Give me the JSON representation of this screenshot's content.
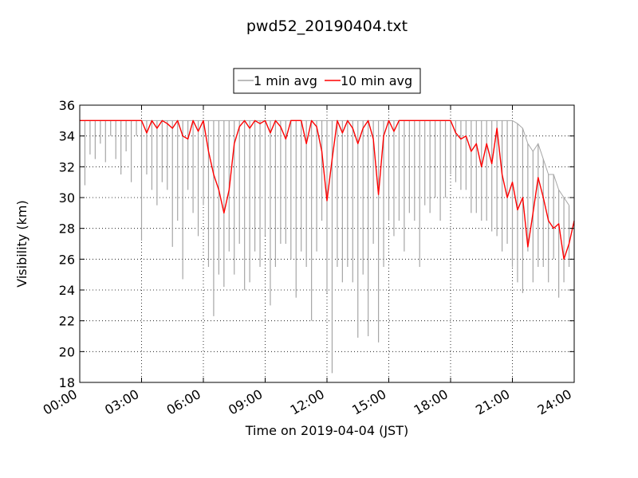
{
  "chart_data": {
    "type": "line",
    "title": "pwd52_20190404.txt",
    "xlabel": "Time on 2019-04-04 (JST)",
    "ylabel": "Visibility (km)",
    "xlim": [
      "00:00",
      "24:00"
    ],
    "ylim": [
      18,
      36
    ],
    "x_ticks": [
      "00:00",
      "03:00",
      "06:00",
      "09:00",
      "12:00",
      "15:00",
      "18:00",
      "21:00",
      "24:00"
    ],
    "y_ticks": [
      18,
      20,
      22,
      24,
      26,
      28,
      30,
      32,
      34,
      36
    ],
    "grid": true,
    "legend_position": "top-center",
    "series": [
      {
        "name": "1 min avg",
        "color": "#a6a6a6",
        "x": [
          "00:15",
          "00:30",
          "00:45",
          "01:00",
          "01:15",
          "01:30",
          "01:45",
          "02:00",
          "02:15",
          "02:30",
          "02:45",
          "03:00",
          "03:15",
          "03:30",
          "03:45",
          "04:00",
          "04:15",
          "04:30",
          "04:45",
          "05:00",
          "05:15",
          "05:30",
          "05:45",
          "06:00",
          "06:15",
          "06:30",
          "06:45",
          "07:00",
          "07:15",
          "07:30",
          "07:45",
          "08:00",
          "08:15",
          "08:30",
          "08:45",
          "09:00",
          "09:15",
          "09:30",
          "09:45",
          "10:00",
          "10:15",
          "10:30",
          "10:45",
          "11:00",
          "11:15",
          "11:30",
          "11:45",
          "12:00",
          "12:15",
          "12:30",
          "12:45",
          "13:00",
          "13:15",
          "13:30",
          "13:45",
          "14:00",
          "14:15",
          "14:30",
          "14:45",
          "15:00",
          "15:15",
          "15:30",
          "15:45",
          "16:00",
          "16:15",
          "16:30",
          "16:45",
          "17:00",
          "17:15",
          "17:30",
          "17:45",
          "18:00",
          "18:15",
          "18:30",
          "18:45",
          "19:00",
          "19:15",
          "19:30",
          "19:45",
          "20:00",
          "20:15",
          "20:30",
          "20:45",
          "21:00",
          "21:15",
          "21:30",
          "21:45",
          "22:00",
          "22:15",
          "22:30",
          "22:45",
          "23:00",
          "23:15",
          "23:30",
          "23:45"
        ],
        "min": [
          30.8,
          32.8,
          32.5,
          33.5,
          32.3,
          34.0,
          32.5,
          31.5,
          33.0,
          31.0,
          34.0,
          27.2,
          31.5,
          30.5,
          29.5,
          31.0,
          30.5,
          26.8,
          28.5,
          24.7,
          30.5,
          29.0,
          27.5,
          29.5,
          25.5,
          22.3,
          25.0,
          24.2,
          26.5,
          25.0,
          27.0,
          24.0,
          24.5,
          26.5,
          25.5,
          27.5,
          23.0,
          25.5,
          27.0,
          27.0,
          26.0,
          23.5,
          26.5,
          25.5,
          22.0,
          26.5,
          28.5,
          23.8,
          18.6,
          25.5,
          24.5,
          25.5,
          24.5,
          20.9,
          25.0,
          21.0,
          27.0,
          20.6,
          25.5,
          28.5,
          27.5,
          28.5,
          26.5,
          29.0,
          28.5,
          25.5,
          29.5,
          29.0,
          30.0,
          28.5,
          30.0,
          31.5,
          31.0,
          30.5,
          30.5,
          29.0,
          29.0,
          28.5,
          28.5,
          27.8,
          27.5,
          26.5,
          27.0,
          25.5,
          24.5,
          23.8,
          26.5,
          24.5,
          25.5,
          25.5,
          24.5,
          26.0,
          23.5,
          24.5,
          25.5
        ],
        "max": [
          35,
          35,
          35,
          35,
          35,
          35,
          35,
          35,
          35,
          35,
          35,
          35,
          35,
          35,
          35,
          35,
          35,
          35,
          35,
          35,
          35,
          35,
          35,
          35,
          35,
          35,
          35,
          35,
          35,
          35,
          35,
          35,
          35,
          35,
          35,
          35,
          35,
          35,
          35,
          35,
          35,
          35,
          35,
          35,
          35,
          35,
          35,
          35,
          35,
          35,
          35,
          35,
          35,
          35,
          35,
          35,
          35,
          35,
          35,
          35,
          35,
          35,
          35,
          35,
          35,
          35,
          35,
          35,
          35,
          35,
          35,
          35,
          35,
          35,
          35,
          35,
          35,
          35,
          35,
          35,
          35,
          35,
          35,
          35,
          34.8,
          34.5,
          33.5,
          33.0,
          33.5,
          32.5,
          31.5,
          31.5,
          30.5,
          30.0,
          29.5
        ]
      },
      {
        "name": "10 min avg",
        "color": "#ff0000",
        "x": [
          "00:00",
          "01:00",
          "02:00",
          "03:00",
          "03:15",
          "03:30",
          "03:45",
          "04:00",
          "04:15",
          "04:30",
          "04:45",
          "05:00",
          "05:15",
          "05:30",
          "05:45",
          "06:00",
          "06:15",
          "06:30",
          "06:45",
          "07:00",
          "07:15",
          "07:30",
          "07:45",
          "08:00",
          "08:15",
          "08:30",
          "08:45",
          "09:00",
          "09:15",
          "09:30",
          "09:45",
          "10:00",
          "10:15",
          "10:30",
          "10:45",
          "11:00",
          "11:15",
          "11:30",
          "11:45",
          "12:00",
          "12:15",
          "12:30",
          "12:45",
          "13:00",
          "13:15",
          "13:30",
          "13:45",
          "14:00",
          "14:15",
          "14:30",
          "14:45",
          "15:00",
          "15:15",
          "15:30",
          "15:45",
          "16:00",
          "16:30",
          "17:00",
          "17:30",
          "18:00",
          "18:15",
          "18:30",
          "18:45",
          "19:00",
          "19:15",
          "19:30",
          "19:45",
          "20:00",
          "20:15",
          "20:30",
          "20:45",
          "21:00",
          "21:15",
          "21:30",
          "21:45",
          "22:00",
          "22:15",
          "22:30",
          "22:45",
          "23:00",
          "23:15",
          "23:30",
          "23:45",
          "24:00"
        ],
        "y": [
          35,
          35,
          35,
          35,
          34.2,
          35,
          34.5,
          35,
          34.8,
          34.5,
          35,
          34.0,
          33.8,
          35,
          34.3,
          35,
          33.0,
          31.5,
          30.5,
          29.0,
          30.5,
          33.5,
          34.6,
          35,
          34.5,
          35,
          34.8,
          35,
          34.2,
          35,
          34.6,
          33.8,
          35,
          35,
          35,
          33.5,
          35,
          34.6,
          33.0,
          29.8,
          32.5,
          35,
          34.2,
          35,
          34.5,
          33.5,
          34.5,
          35,
          33.8,
          30.2,
          34.0,
          35,
          34.3,
          35,
          35,
          35,
          35,
          35,
          35,
          35,
          34.2,
          33.8,
          34.0,
          33.0,
          33.5,
          32.0,
          33.5,
          32.2,
          34.5,
          31.5,
          30.0,
          31.0,
          29.2,
          30.0,
          26.8,
          29.0,
          31.3,
          30.0,
          28.5,
          28.0,
          28.3,
          26.0,
          27.0,
          28.5
        ]
      }
    ]
  }
}
